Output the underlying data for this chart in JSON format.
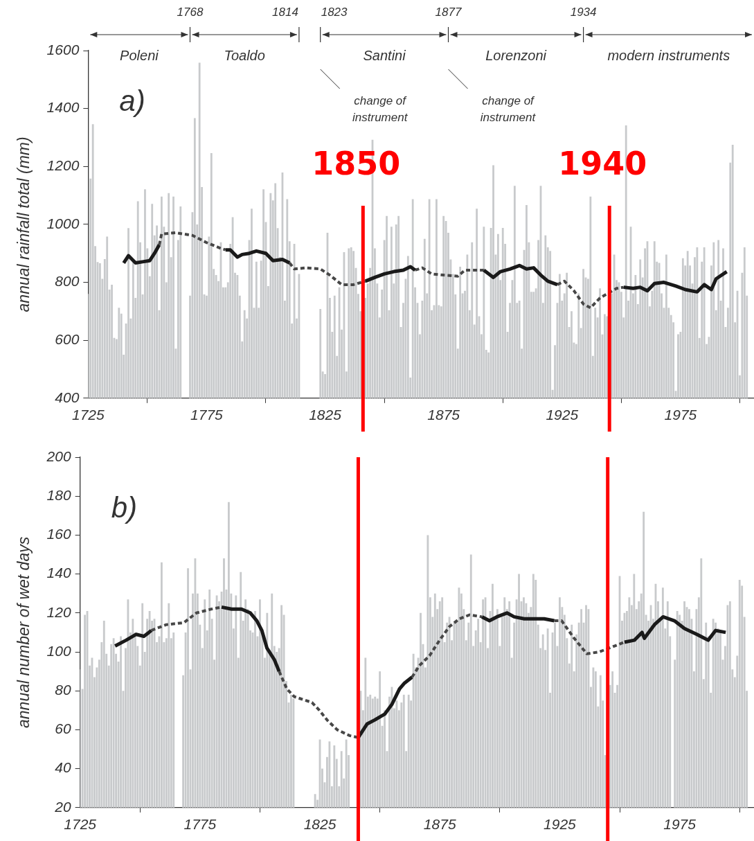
{
  "chart_data": [
    {
      "type": "bar",
      "ylabel": "annual rainfall total (mm)",
      "xlim": [
        1725,
        2006
      ],
      "xticks": [
        1725,
        1775,
        1825,
        1875,
        1925,
        1975
      ],
      "ylim": [
        400,
        1600
      ],
      "yticks": [
        400,
        600,
        800,
        1000,
        1200,
        1400,
        1600
      ],
      "grid": false,
      "x": [
        1725,
        1726,
        1727,
        1728,
        1729,
        1730,
        1731,
        1732,
        1733,
        1734,
        1735,
        1736,
        1737,
        1738,
        1739,
        1740,
        1741,
        1742,
        1743,
        1744,
        1745,
        1746,
        1747,
        1748,
        1749,
        1750,
        1751,
        1752,
        1753,
        1754,
        1755,
        1756,
        1757,
        1758,
        1759,
        1760,
        1761,
        1762,
        1763,
        1764,
        1765,
        1766,
        1767,
        1768,
        1769,
        1770,
        1771,
        1772,
        1773,
        1774,
        1775,
        1776,
        1777,
        1778,
        1779,
        1780,
        1781,
        1782,
        1783,
        1784,
        1785,
        1786,
        1787,
        1788,
        1789,
        1790,
        1791,
        1792,
        1793,
        1794,
        1795,
        1796,
        1797,
        1798,
        1799,
        1800,
        1801,
        1802,
        1803,
        1804,
        1805,
        1806,
        1807,
        1808,
        1809,
        1810,
        1811,
        1812,
        1813,
        1814,
        1815,
        1816,
        1817,
        1818,
        1819,
        1820,
        1821,
        1822,
        1823,
        1824,
        1825,
        1826,
        1827,
        1828,
        1829,
        1830,
        1831,
        1832,
        1833,
        1834,
        1835,
        1836,
        1837,
        1838,
        1839,
        1840,
        1841,
        1842,
        1843,
        1844,
        1845,
        1846,
        1847,
        1848,
        1849,
        1850,
        1851,
        1852,
        1853,
        1854,
        1855,
        1856,
        1857,
        1858,
        1859,
        1860,
        1861,
        1862,
        1863,
        1864,
        1865,
        1866,
        1867,
        1868,
        1869,
        1870,
        1871,
        1872,
        1873,
        1874,
        1875,
        1876,
        1877,
        1878,
        1879,
        1880,
        1881,
        1882,
        1883,
        1884,
        1885,
        1886,
        1887,
        1888,
        1889,
        1890,
        1891,
        1892,
        1893,
        1894,
        1895,
        1896,
        1897,
        1898,
        1899,
        1900,
        1901,
        1902,
        1903,
        1904,
        1905,
        1906,
        1907,
        1908,
        1909,
        1910,
        1911,
        1912,
        1913,
        1914,
        1915,
        1916,
        1917,
        1918,
        1919,
        1920,
        1921,
        1922,
        1923,
        1924,
        1925,
        1926,
        1927,
        1928,
        1929,
        1930,
        1931,
        1932,
        1933,
        1934,
        1935,
        1936,
        1937,
        1938,
        1939,
        1940,
        1941,
        1942,
        1943,
        1944,
        1945,
        1946,
        1947,
        1948,
        1949,
        1950,
        1951,
        1952,
        1953,
        1954,
        1955,
        1956,
        1957,
        1958,
        1959,
        1960,
        1961,
        1962,
        1963,
        1964,
        1965,
        1966,
        1967,
        1968,
        1969,
        1970,
        1971,
        1972,
        1973,
        1974,
        1975,
        1976,
        1977,
        1978,
        1979,
        1980,
        1981,
        1982,
        1983,
        1984,
        1985,
        1986,
        1987,
        1988,
        1989,
        1990,
        1991,
        1992,
        1993,
        1994,
        1995,
        1996,
        1997,
        1998,
        1999,
        2000,
        2001,
        2002,
        2003
      ],
      "series": [
        {
          "color": "#c8cacc",
          "values": [
            760,
            1158,
            1346,
            925,
            870,
            866,
            812,
            880,
            958,
            775,
            792,
            608,
            604,
            712,
            692,
            550,
            658,
            987,
            675,
            880,
            746,
            1080,
            938,
            758,
            1121,
            917,
            821,
            1071,
            962,
            996,
            704,
            1096,
            992,
            800,
            1108,
            887,
            1096,
            571,
            946,
            1062,
            null,
            null,
            null,
            754,
            1042,
            1367,
            1000,
            1558,
            1129,
            758,
            754,
            958,
            1246,
            846,
            825,
            804,
            938,
            783,
            783,
            800,
            933,
            1025,
            833,
            825,
            754,
            596,
            704,
            675,
            946,
            1054,
            712,
            871,
            712,
            875,
            1121,
            1008,
            787,
            1108,
            1083,
            1142,
            987,
            887,
            1179,
            737,
            1087,
            942,
            658,
            933,
            675,
            829,
            null,
            null,
            null,
            null,
            null,
            null,
            null,
            null,
            708,
            492,
            483,
            971,
            746,
            629,
            754,
            546,
            783,
            637,
            904,
            492,
            917,
            921,
            908,
            850,
            760,
            700,
            null,
            746,
            796,
            850,
            1292,
            917,
            796,
            679,
            775,
            946,
            1029,
            704,
            992,
            796,
            1000,
            1029,
            646,
            729,
            812,
            891,
            471,
            1087,
            783,
            729,
            621,
            737,
            950,
            762,
            1087,
            704,
            721,
            1087,
            721,
            717,
            1029,
            1012,
            971,
            879,
            829,
            758,
            571,
            854,
            762,
            771,
            896,
            704,
            938,
            654,
            1054,
            683,
            621,
            992,
            567,
            558,
            988,
            1204,
            896,
            967,
            808,
            988,
            933,
            629,
            729,
            808,
            1133,
            729,
            737,
            571,
            912,
            1067,
            938,
            767,
            767,
            779,
            946,
            1133,
            729,
            962,
            921,
            908,
            429,
            583,
            729,
            829,
            737,
            762,
            833,
            646,
            700,
            592,
            587,
            762,
            642,
            846,
            817,
            812,
            1096,
            546,
            712,
            679,
            779,
            620,
            690,
            683,
            null,
            762,
            896,
            808,
            800,
            767,
            679,
            1342,
            737,
            992,
            762,
            825,
            725,
            879,
            817,
            917,
            942,
            717,
            771,
            942,
            871,
            867,
            762,
            712,
            896,
            712,
            687,
            662,
            425,
            621,
            629,
            883,
            858,
            908,
            858,
            796,
            887,
            921,
            608,
            871,
            921,
            587,
            612,
            858,
            938,
            704,
            946,
            737,
            917,
            646,
            712,
            1213,
            1275,
            662,
            771,
            479,
            833,
            921,
            754
          ]
        },
        {
          "type": "line",
          "color": "#1a1a1a",
          "line_style": "solid",
          "x": [
            1740,
            1742,
            1745,
            1748,
            1751,
            1753,
            1755,
            1769,
            1783,
            1785,
            1788,
            1790,
            1793,
            1796,
            1800,
            1803,
            1807,
            1810,
            1826,
            1842,
            1846,
            1850,
            1854,
            1858,
            1861,
            1863,
            1877,
            1892,
            1896,
            1899,
            1903,
            1907,
            1910,
            1913,
            1916,
            1919,
            1923,
            1937,
            1951,
            1955,
            1958,
            1961,
            1964,
            1968,
            1973,
            1977,
            1982,
            1985,
            1988,
            1990,
            1994.5
          ],
          "values": [
            867,
            892,
            867,
            871,
            875,
            900,
            929,
            null,
            912,
            912,
            887,
            896,
            900,
            908,
            900,
            875,
            879,
            867,
            null,
            804,
            817,
            829,
            837,
            842,
            854,
            842,
            null,
            842,
            817,
            837,
            846,
            858,
            846,
            850,
            825,
            804,
            792,
            null,
            783,
            779,
            783,
            771,
            796,
            800,
            787,
            775,
            767,
            792,
            775,
            812,
            837
          ]
        },
        {
          "type": "line",
          "color": "#474747",
          "line_style": "dotted",
          "x": [
            1755,
            1756,
            1762,
            1769,
            1775,
            1781,
            1783,
            1797,
            1810,
            1812,
            1817,
            1823,
            1827,
            1832,
            1837,
            1842,
            1852,
            1863,
            1866,
            1870,
            1875,
            1881,
            1884,
            1892,
            1907,
            1923,
            1926,
            1930,
            1934,
            1937,
            1941,
            1948,
            1951
          ],
          "values": [
            929,
            967,
            971,
            962,
            937,
            917,
            912,
            null,
            867,
            846,
            850,
            846,
            825,
            792,
            792,
            804,
            null,
            842,
            850,
            829,
            825,
            821,
            842,
            842,
            null,
            792,
            804,
            771,
            725,
            712,
            746,
            779,
            783
          ]
        }
      ],
      "ref_lines": [
        {
          "axis": "x",
          "value": 1841,
          "color": "#ff0000"
        },
        {
          "axis": "x",
          "value": 1945,
          "color": "#ff0000"
        }
      ],
      "annotations": [
        "a)",
        "1768",
        "1814",
        "1823",
        "1877",
        "1934",
        "Poleni",
        "Toaldo",
        "Santini",
        "Lorenzoni",
        "modern instruments",
        "change of instrument",
        "change of instrument",
        "1850",
        "1940"
      ]
    },
    {
      "type": "bar",
      "ylabel": "annual number of wet days",
      "xlim": [
        1725,
        2006
      ],
      "xticks": [
        1725,
        1775,
        1825,
        1875,
        1925,
        1975
      ],
      "ylim": [
        20,
        200
      ],
      "yticks": [
        20,
        40,
        60,
        80,
        100,
        120,
        140,
        160,
        180,
        200
      ],
      "grid": false,
      "x": [
        1725,
        1726,
        1727,
        1728,
        1729,
        1730,
        1731,
        1732,
        1733,
        1734,
        1735,
        1736,
        1737,
        1738,
        1739,
        1740,
        1741,
        1742,
        1743,
        1744,
        1745,
        1746,
        1747,
        1748,
        1749,
        1750,
        1751,
        1752,
        1753,
        1754,
        1755,
        1756,
        1757,
        1758,
        1759,
        1760,
        1761,
        1762,
        1763,
        1764,
        1765,
        1766,
        1767,
        1768,
        1769,
        1770,
        1771,
        1772,
        1773,
        1774,
        1775,
        1776,
        1777,
        1778,
        1779,
        1780,
        1781,
        1782,
        1783,
        1784,
        1785,
        1786,
        1787,
        1788,
        1789,
        1790,
        1791,
        1792,
        1793,
        1794,
        1795,
        1796,
        1797,
        1798,
        1799,
        1800,
        1801,
        1802,
        1803,
        1804,
        1805,
        1806,
        1807,
        1808,
        1809,
        1810,
        1811,
        1812,
        1813,
        1814,
        1815,
        1816,
        1817,
        1818,
        1819,
        1820,
        1821,
        1822,
        1823,
        1824,
        1825,
        1826,
        1827,
        1828,
        1829,
        1830,
        1831,
        1832,
        1833,
        1834,
        1835,
        1836,
        1837,
        1838,
        1839,
        1840,
        1841,
        1842,
        1843,
        1844,
        1845,
        1846,
        1847,
        1848,
        1849,
        1850,
        1851,
        1852,
        1853,
        1854,
        1855,
        1856,
        1857,
        1858,
        1859,
        1860,
        1861,
        1862,
        1863,
        1864,
        1865,
        1866,
        1867,
        1868,
        1869,
        1870,
        1871,
        1872,
        1873,
        1874,
        1875,
        1876,
        1877,
        1878,
        1879,
        1880,
        1881,
        1882,
        1883,
        1884,
        1885,
        1886,
        1887,
        1888,
        1889,
        1890,
        1891,
        1892,
        1893,
        1894,
        1895,
        1896,
        1897,
        1898,
        1899,
        1900,
        1901,
        1902,
        1903,
        1904,
        1905,
        1906,
        1907,
        1908,
        1909,
        1910,
        1911,
        1912,
        1913,
        1914,
        1915,
        1916,
        1917,
        1918,
        1919,
        1920,
        1921,
        1922,
        1923,
        1924,
        1925,
        1926,
        1927,
        1928,
        1929,
        1930,
        1931,
        1932,
        1933,
        1934,
        1935,
        1936,
        1937,
        1938,
        1939,
        1940,
        1941,
        1942,
        1943,
        1944,
        1945,
        1946,
        1947,
        1948,
        1949,
        1950,
        1951,
        1952,
        1953,
        1954,
        1955,
        1956,
        1957,
        1958,
        1959,
        1960,
        1961,
        1962,
        1963,
        1964,
        1965,
        1966,
        1967,
        1968,
        1969,
        1970,
        1971,
        1972,
        1973,
        1974,
        1975,
        1976,
        1977,
        1978,
        1979,
        1980,
        1981,
        1982,
        1983,
        1984,
        1985,
        1986,
        1987,
        1988,
        1989,
        1990,
        1991,
        1992,
        1993,
        1994,
        1995,
        1996,
        1997,
        1998,
        1999,
        2000,
        2001,
        2002,
        2003
      ],
      "series": [
        {
          "color": "#c8cacc",
          "values": [
            91,
            81,
            119,
            121,
            93,
            97,
            87,
            92,
            96,
            105,
            116,
            99,
            93,
            104,
            107,
            99,
            95,
            108,
            80,
            102,
            127,
            110,
            117,
            110,
            103,
            93,
            125,
            100,
            117,
            121,
            116,
            117,
            105,
            108,
            146,
            105,
            107,
            125,
            107,
            110,
            null,
            null,
            null,
            88,
            110,
            143,
            91,
            130,
            148,
            130,
            114,
            102,
            127,
            111,
            132,
            117,
            96,
            129,
            126,
            131,
            148,
            132,
            177,
            130,
            112,
            129,
            97,
            141,
            116,
            127,
            122,
            111,
            110,
            121,
            108,
            127,
            109,
            97,
            120,
            101,
            130,
            103,
            100,
            102,
            124,
            119,
            85,
            74,
            78,
            76,
            null,
            null,
            null,
            null,
            null,
            null,
            null,
            null,
            27,
            24,
            55,
            40,
            33,
            46,
            54,
            31,
            52,
            45,
            31,
            49,
            35,
            55,
            47,
            null,
            null,
            null,
            null,
            80,
            70,
            97,
            77,
            78,
            76,
            77,
            76,
            90,
            62,
            70,
            49,
            77,
            82,
            71,
            75,
            70,
            74,
            78,
            49,
            78,
            75,
            99,
            92,
            97,
            120,
            104,
            92,
            160,
            128,
            118,
            130,
            122,
            126,
            128,
            105,
            115,
            118,
            106,
            115,
            116,
            133,
            130,
            122,
            106,
            115,
            150,
            103,
            111,
            117,
            105,
            127,
            128,
            102,
            121,
            135,
            118,
            122,
            103,
            118,
            128,
            122,
            126,
            97,
            115,
            127,
            140,
            126,
            128,
            125,
            120,
            123,
            140,
            137,
            114,
            102,
            109,
            101,
            112,
            79,
            110,
            115,
            103,
            128,
            123,
            119,
            107,
            94,
            114,
            90,
            109,
            115,
            122,
            115,
            124,
            122,
            82,
            92,
            90,
            72,
            88,
            75,
            47,
            null,
            83,
            90,
            79,
            83,
            139,
            116,
            120,
            121,
            128,
            124,
            140,
            122,
            126,
            130,
            172,
            119,
            116,
            124,
            117,
            135,
            126,
            116,
            133,
            112,
            126,
            108,
            null,
            96,
            121,
            119,
            116,
            126,
            123,
            122,
            117,
            90,
            122,
            128,
            148,
            86,
            115,
            108,
            79,
            117,
            115,
            112,
            111,
            96,
            103,
            124,
            126,
            91,
            87,
            98,
            137,
            134,
            118,
            80
          ]
        },
        {
          "type": "line",
          "color": "#1a1a1a",
          "line_style": "solid",
          "x": [
            1739.6,
            1744.2,
            1748.4,
            1751.6,
            1753.7,
            1754.7,
            1770,
            1784,
            1788.2,
            1792.3,
            1796,
            1798.7,
            1800.8,
            1802.9,
            1806,
            1808,
            1825,
            1841,
            1844.7,
            1847.8,
            1852,
            1855,
            1858.2,
            1860.3,
            1863.4,
            1878,
            1892.6,
            1895.7,
            1898.8,
            1903,
            1906,
            1910.2,
            1914.4,
            1918.5,
            1922.7,
            1937,
            1952,
            1956.1,
            1959.3,
            1960.3,
            1964.5,
            1968.1,
            1972.8,
            1977,
            1982.2,
            1986.9,
            1990,
            1994.2
          ],
          "values": [
            103,
            106,
            109,
            108,
            110,
            111,
            null,
            123,
            122,
            122,
            120,
            116,
            111,
            102,
            96,
            90,
            null,
            56,
            63,
            65,
            68,
            73,
            81,
            84,
            87,
            null,
            118,
            116,
            118,
            120,
            118,
            117,
            117,
            117,
            116,
            null,
            105,
            106,
            110,
            107,
            114,
            118,
            116,
            112,
            109,
            106,
            111,
            110
          ]
        },
        {
          "type": "line",
          "color": "#474747",
          "line_style": "dotted",
          "x": [
            1754.7,
            1761,
            1768.3,
            1773.5,
            1779.8,
            1784,
            1796,
            1808,
            1811.2,
            1814.3,
            1821.7,
            1824.8,
            1828,
            1832.2,
            1837.4,
            1841,
            1852,
            1863.4,
            1866.5,
            1870.7,
            1874.9,
            1879,
            1883.2,
            1887.4,
            1892.6,
            1907,
            1922.7,
            1925.8,
            1931,
            1936.3,
            1941.5,
            1947.8,
            1952
          ],
          "values": [
            111,
            114,
            115,
            120,
            122,
            123,
            null,
            90,
            81,
            77,
            74,
            70,
            65,
            60,
            57,
            56,
            null,
            87,
            93,
            98,
            106,
            113,
            117,
            119,
            118,
            null,
            116,
            116,
            107,
            99,
            100,
            103,
            105
          ]
        }
      ],
      "ref_lines": [
        {
          "axis": "x",
          "value": 1841,
          "color": "#ff0000"
        },
        {
          "axis": "x",
          "value": 1945,
          "color": "#ff0000"
        }
      ],
      "annotations": [
        "b)"
      ]
    }
  ]
}
